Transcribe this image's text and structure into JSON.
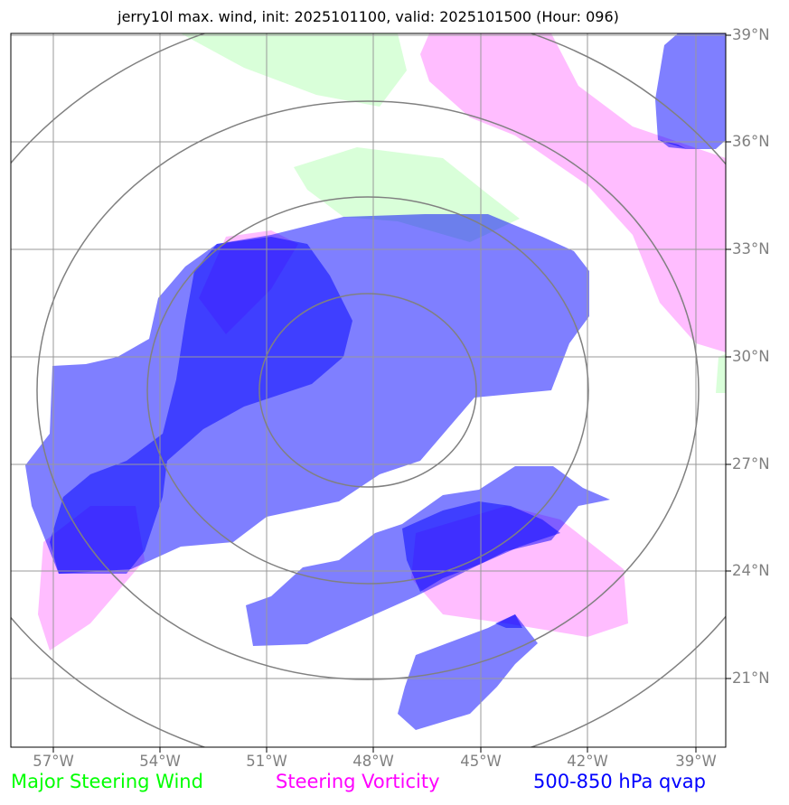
{
  "title": "jerry10l max. wind, init: 2025101100, valid: 2025101500 (Hour: 096)",
  "axes": {
    "lat_labels": [
      "39°N",
      "36°N",
      "33°N",
      "30°N",
      "27°N",
      "24°N",
      "21°N"
    ],
    "lon_labels": [
      "57°W",
      "54°W",
      "51°W",
      "48°W",
      "45°W",
      "42°W",
      "39°W"
    ]
  },
  "legend": {
    "items": [
      {
        "label": "Major Steering Wind",
        "color": "#00ff00"
      },
      {
        "label": "Steering Vorticity",
        "color": "#ff00ff"
      },
      {
        "label": "500-850 hPa qvap",
        "color": "#0000ff"
      }
    ]
  },
  "colors": {
    "steering_wind_fill": "#ccffcc",
    "vorticity_fill": "#ff99ff",
    "qvap_fill": "#0000ff",
    "grid": "#999999",
    "range_rings": "#808080"
  },
  "features": {
    "range_rings_count": 4,
    "grid": true
  }
}
